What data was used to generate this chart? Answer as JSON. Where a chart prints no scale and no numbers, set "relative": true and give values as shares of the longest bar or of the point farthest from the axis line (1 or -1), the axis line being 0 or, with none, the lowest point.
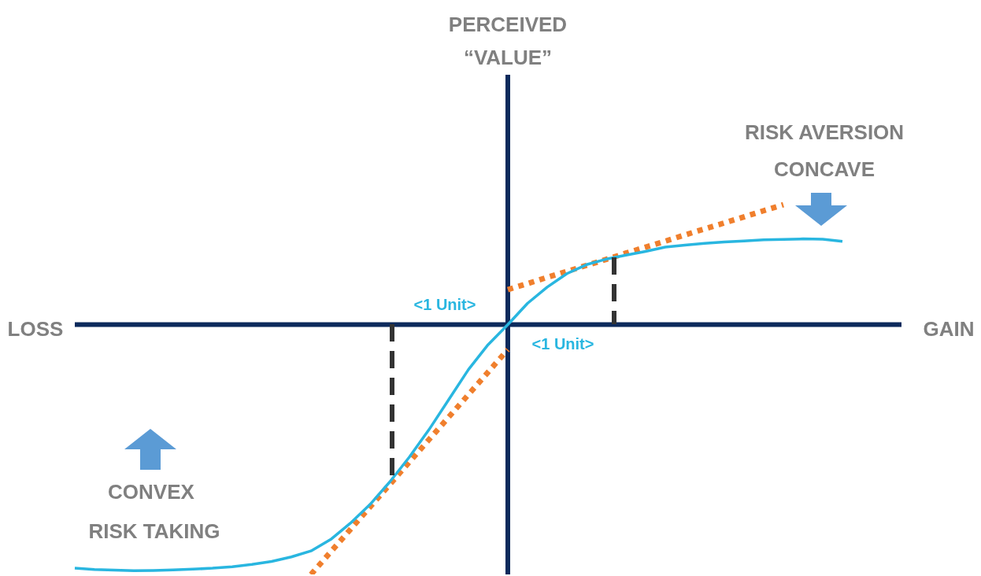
{
  "chart_data": {
    "type": "line",
    "relative": true,
    "annotations": [
      "PERCEIVED “VALUE”",
      "LOSS",
      "GAIN",
      "<1 Unit>",
      "<1 Unit>",
      "RISK AVERSION",
      "CONCAVE",
      "CONVEX",
      "RISK TAKING"
    ],
    "categories": [
      null,
      null,
      null,
      null,
      null,
      null,
      null,
      null,
      null,
      null,
      null,
      null,
      null,
      null,
      null,
      null,
      null,
      null,
      null,
      null,
      null,
      null,
      null,
      null,
      null,
      null,
      null,
      null,
      null,
      null,
      null,
      null,
      null,
      null,
      null,
      null,
      null,
      null,
      null,
      null,
      null,
      null,
      null
    ],
    "series": [
      {
        "color": "#29b6e0",
        "line_style": "solid",
        "values": [
          -0.975,
          -0.98,
          -0.983,
          -0.985,
          -0.984,
          -0.982,
          -0.979,
          -0.975,
          -0.969,
          -0.96,
          -0.948,
          -0.93,
          -0.906,
          -0.86,
          -0.795,
          -0.72,
          -0.63,
          -0.53,
          -0.42,
          -0.3,
          -0.18,
          -0.08,
          0,
          0.085,
          0.15,
          0.204,
          0.24,
          0.262,
          0.278,
          0.293,
          0.31,
          0.318,
          0.325,
          0.331,
          0.335,
          0.339,
          0.341,
          0.343,
          0.342,
          0.333,
          null,
          null,
          null
        ]
      },
      {
        "color": "#f07f2d",
        "line_style": "dotted",
        "values": [
          null,
          null,
          null,
          null,
          null,
          null,
          null,
          null,
          null,
          null,
          null,
          null,
          -1,
          -0.91,
          -0.82,
          -0.73,
          -0.64,
          -0.55,
          -0.46,
          -0.37,
          -0.28,
          -0.19,
          -0.1,
          null,
          null,
          null,
          null,
          null,
          null,
          null,
          null,
          null,
          null,
          null,
          null,
          null,
          null,
          null,
          null,
          null,
          null,
          null,
          null
        ]
      },
      {
        "color": "#f07f2d",
        "line_style": "dotted",
        "values": [
          null,
          null,
          null,
          null,
          null,
          null,
          null,
          null,
          null,
          null,
          null,
          null,
          null,
          null,
          null,
          null,
          null,
          null,
          null,
          null,
          null,
          null,
          0.14,
          0.164,
          0.189,
          0.213,
          0.237,
          0.261,
          0.286,
          0.31,
          0.334,
          0.359,
          0.383,
          0.407,
          0.431,
          0.456,
          0.48,
          null,
          null,
          null,
          null,
          null,
          null
        ]
      }
    ]
  }
}
